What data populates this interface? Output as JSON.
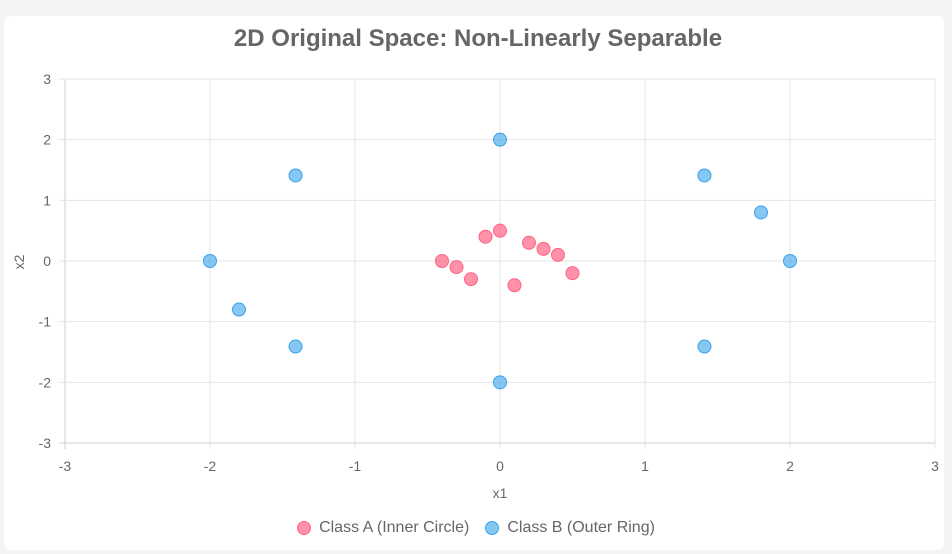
{
  "chart_data": {
    "type": "scatter",
    "title": "2D Original Space: Non-Linearly Separable",
    "xlabel": "x1",
    "ylabel": "x2",
    "xlim": [
      -3,
      3
    ],
    "ylim": [
      -3,
      3
    ],
    "xticks": [
      "-3",
      "-2",
      "-1",
      "0",
      "1",
      "2",
      "3"
    ],
    "yticks": [
      "-3",
      "-2",
      "-1",
      "0",
      "1",
      "2",
      "3"
    ],
    "grid": true,
    "legend_position": "bottom",
    "series": [
      {
        "name": "Class A (Inner Circle)",
        "color": "#ff6384",
        "points": [
          {
            "x": 0.0,
            "y": 0.5
          },
          {
            "x": -0.1,
            "y": 0.4
          },
          {
            "x": 0.2,
            "y": 0.3
          },
          {
            "x": 0.3,
            "y": 0.2
          },
          {
            "x": 0.4,
            "y": 0.1
          },
          {
            "x": -0.4,
            "y": 0.0
          },
          {
            "x": -0.3,
            "y": -0.1
          },
          {
            "x": -0.2,
            "y": -0.3
          },
          {
            "x": 0.5,
            "y": -0.2
          },
          {
            "x": 0.1,
            "y": -0.4
          }
        ]
      },
      {
        "name": "Class B (Outer Ring)",
        "color": "#36a2eb",
        "points": [
          {
            "x": 0.0,
            "y": 2.0
          },
          {
            "x": -1.41,
            "y": 1.41
          },
          {
            "x": 1.41,
            "y": 1.41
          },
          {
            "x": 1.8,
            "y": 0.8
          },
          {
            "x": -2.0,
            "y": 0.0
          },
          {
            "x": 2.0,
            "y": 0.0
          },
          {
            "x": -1.8,
            "y": -0.8
          },
          {
            "x": -1.41,
            "y": -1.41
          },
          {
            "x": 1.41,
            "y": -1.41
          },
          {
            "x": 0.0,
            "y": -2.0
          }
        ]
      }
    ]
  }
}
